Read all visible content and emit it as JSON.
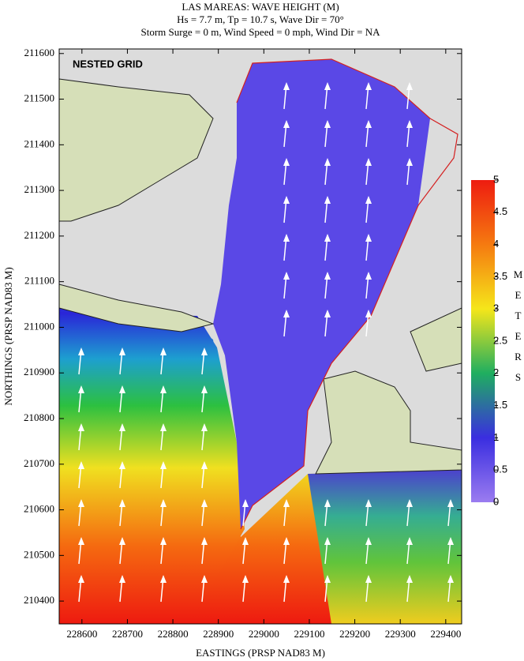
{
  "chart_data": {
    "type": "contour",
    "title": "LAS MAREAS: WAVE HEIGHT (M)",
    "subtitle": "Hs = 7.7 m, Tp = 10.7 s, Wave Dir = 70°",
    "subtitle2": "Storm Surge = 0 m, Wind Speed = 0 mph, Wind Dir = NA",
    "annotation": "NESTED GRID",
    "xlabel": "EASTINGS (PRSP NAD83 M)",
    "ylabel": "NORTHINGS (PRSP NAD83 M)",
    "xlim": [
      228550,
      229435
    ],
    "xticks": [
      228600,
      228700,
      228800,
      228900,
      229000,
      229100,
      229200,
      229300,
      229400
    ],
    "ylim": [
      210350,
      211610
    ],
    "yticks": [
      210400,
      210500,
      210600,
      210700,
      210800,
      210900,
      211000,
      211100,
      211200,
      211300,
      211400,
      211500,
      211600
    ],
    "colorbar": {
      "label": "METERS",
      "lim": [
        0,
        5
      ],
      "ticks": [
        0,
        0.5,
        1,
        1.5,
        2,
        2.5,
        3,
        3.5,
        4,
        4.5,
        5
      ],
      "colors": [
        "#9b7cf0",
        "#3a2ee0",
        "#1fae60",
        "#f5e61a",
        "#f57a10",
        "#ee1c10"
      ]
    }
  }
}
